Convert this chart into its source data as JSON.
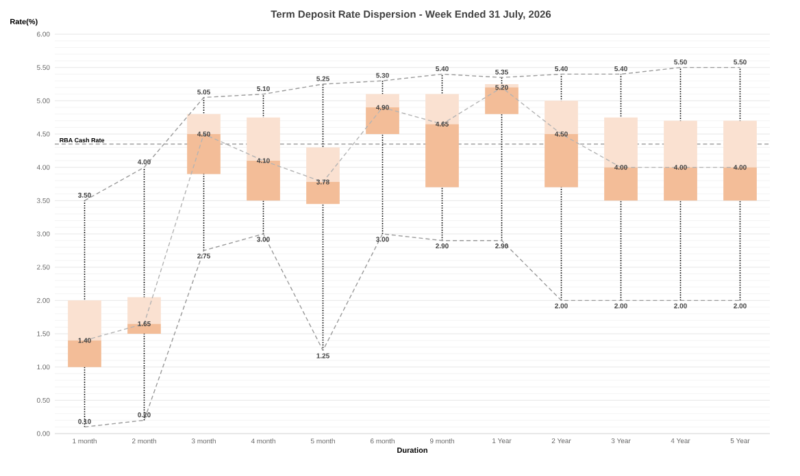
{
  "chart_data": {
    "type": "box",
    "title": "Term Deposit Rate Dispersion - Week Ended 31 July, 2026",
    "xlabel": "Duration",
    "ylabel": "Rate(%)",
    "categories": [
      "1 month",
      "2 month",
      "3 month",
      "4 month",
      "5 month",
      "6 month",
      "9 month",
      "1 Year",
      "2 Year",
      "3 Year",
      "4 Year",
      "5 Year"
    ],
    "ylim": [
      0,
      6
    ],
    "yticks": [
      {
        "value": 0,
        "label": "0.00"
      },
      {
        "value": 0.5,
        "label": "0.50"
      },
      {
        "value": 1,
        "label": "1.00"
      },
      {
        "value": 1.5,
        "label": "1.50"
      },
      {
        "value": 2,
        "label": "2.00"
      },
      {
        "value": 2.5,
        "label": "2.50"
      },
      {
        "value": 3,
        "label": "3.00"
      },
      {
        "value": 3.5,
        "label": "3.50"
      },
      {
        "value": 4,
        "label": "4.00"
      },
      {
        "value": 4.5,
        "label": "4.50"
      },
      {
        "value": 5,
        "label": "5.00"
      },
      {
        "value": 5.5,
        "label": "5.50"
      },
      {
        "value": 6,
        "label": "6.00"
      }
    ],
    "grid": "y",
    "ref_lines": [
      {
        "axis": "y",
        "value": 4.35,
        "label": "RBA Cash Rate",
        "color": "#8c8c8c",
        "line_style": "dashed"
      }
    ],
    "series": [
      {
        "type": "box",
        "color": "#f3bd98",
        "boxes": [
          {
            "low": 0.1,
            "q1": 1.0,
            "median": 1.4,
            "q3": 2.0,
            "high": 3.5
          },
          {
            "low": 0.2,
            "q1": 1.5,
            "median": 1.65,
            "q3": 2.05,
            "high": 4.0
          },
          {
            "low": 2.75,
            "q1": 3.9,
            "median": 4.5,
            "q3": 4.8,
            "high": 5.05
          },
          {
            "low": 3.0,
            "q1": 3.5,
            "median": 4.1,
            "q3": 4.75,
            "high": 5.1
          },
          {
            "low": 1.25,
            "q1": 3.45,
            "median": 3.78,
            "q3": 4.3,
            "high": 5.25
          },
          {
            "low": 3.0,
            "q1": 4.5,
            "median": 4.9,
            "q3": 5.1,
            "high": 5.3
          },
          {
            "low": 2.9,
            "q1": 3.7,
            "median": 4.65,
            "q3": 5.1,
            "high": 5.4
          },
          {
            "low": 2.9,
            "q1": 4.8,
            "median": 5.2,
            "q3": 5.25,
            "high": 5.35
          },
          {
            "low": 2.0,
            "q1": 3.7,
            "median": 4.5,
            "q3": 5.0,
            "high": 5.4
          },
          {
            "low": 2.0,
            "q1": 3.5,
            "median": 4.0,
            "q3": 4.75,
            "high": 5.4
          },
          {
            "low": 2.0,
            "q1": 3.5,
            "median": 4.0,
            "q3": 4.7,
            "high": 5.5
          },
          {
            "low": 2.0,
            "q1": 3.5,
            "median": 4.0,
            "q3": 4.7,
            "high": 5.5
          }
        ]
      },
      {
        "type": "line",
        "color": "#9a9a9a",
        "line_style": "dashed",
        "marker": "none",
        "values": [
          3.5,
          4.0,
          5.05,
          5.1,
          5.25,
          5.3,
          5.4,
          5.35,
          5.4,
          5.4,
          5.5,
          5.5
        ],
        "value_labels": [
          "3.50",
          "4.00",
          "5.05",
          "5.10",
          "5.25",
          "5.30",
          "5.40",
          "5.35",
          "5.40",
          "5.40",
          "5.50",
          "5.50"
        ]
      },
      {
        "type": "line",
        "color": "#b4b4b4",
        "line_style": "dashed",
        "marker": "none",
        "values": [
          1.4,
          1.65,
          4.5,
          4.1,
          3.78,
          4.9,
          4.65,
          5.2,
          4.5,
          4.0,
          4.0,
          4.0
        ],
        "value_labels": [
          "1.40",
          "1.65",
          "4.50",
          "4.10",
          "3.78",
          "4.90",
          "4.65",
          "5.20",
          "4.50",
          "4.00",
          "4.00",
          "4.00"
        ]
      },
      {
        "type": "line",
        "color": "#9a9a9a",
        "line_style": "dashed",
        "marker": "none",
        "values": [
          0.1,
          0.2,
          2.75,
          3.0,
          1.25,
          3.0,
          2.9,
          2.9,
          2.0,
          2.0,
          2.0,
          2.0
        ],
        "value_labels": [
          "0.10",
          "0.20",
          "2.75",
          "3.00",
          "1.25",
          "3.00",
          "2.90",
          "2.90",
          "2.00",
          "2.00",
          "2.00",
          "2.00"
        ]
      }
    ]
  }
}
